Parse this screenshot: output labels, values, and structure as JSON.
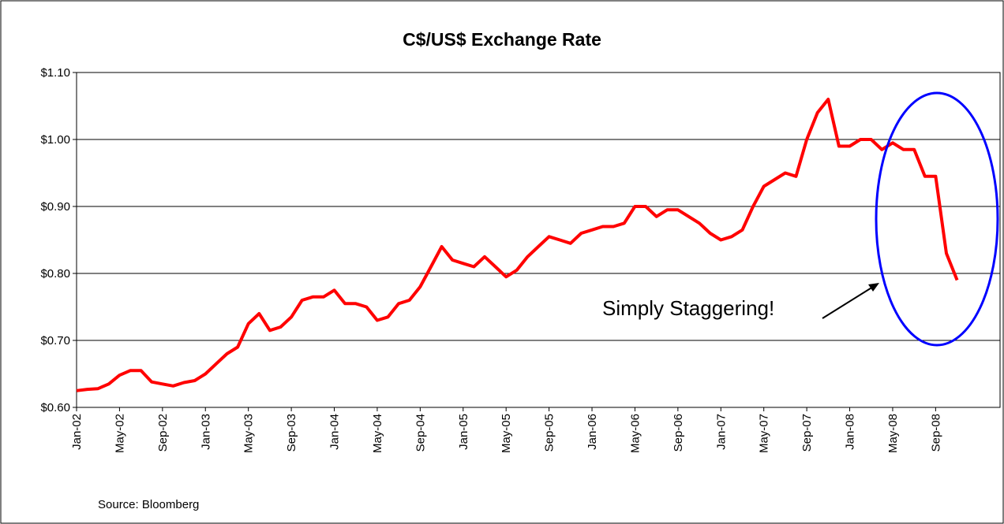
{
  "chart_data": {
    "type": "line",
    "title": "C$/US$ Exchange Rate",
    "annotation": "Simply Staggering!",
    "source": "Source: Bloomberg",
    "categories": [
      "Jan-02",
      null,
      null,
      null,
      "May-02",
      null,
      null,
      null,
      "Sep-02",
      null,
      null,
      null,
      "Jan-03",
      null,
      null,
      null,
      "May-03",
      null,
      null,
      null,
      "Sep-03",
      null,
      null,
      null,
      "Jan-04",
      null,
      null,
      null,
      "May-04",
      null,
      null,
      null,
      "Sep-04",
      null,
      null,
      null,
      "Jan-05",
      null,
      null,
      null,
      "May-05",
      null,
      null,
      null,
      "Sep-05",
      null,
      null,
      null,
      "Jan-06",
      null,
      null,
      null,
      "May-06",
      null,
      null,
      null,
      "Sep-06",
      null,
      null,
      null,
      "Jan-07",
      null,
      null,
      null,
      "May-07",
      null,
      null,
      null,
      "Sep-07",
      null,
      null,
      null,
      "Jan-08",
      null,
      null,
      null,
      "May-08",
      null,
      null,
      null,
      "Sep-08",
      null,
      null,
      null,
      null,
      null,
      null
    ],
    "series": [
      {
        "name": "C$/US$",
        "color": "#ff0000",
        "values": [
          0.625,
          0.627,
          0.628,
          0.635,
          0.648,
          0.655,
          0.655,
          0.638,
          0.635,
          0.632,
          0.637,
          0.64,
          0.65,
          0.665,
          0.68,
          0.69,
          0.725,
          0.74,
          0.715,
          0.72,
          0.735,
          0.76,
          0.765,
          0.765,
          0.775,
          0.755,
          0.755,
          0.75,
          0.73,
          0.735,
          0.755,
          0.76,
          0.78,
          0.81,
          0.84,
          0.82,
          0.815,
          0.81,
          0.825,
          0.81,
          0.795,
          0.805,
          0.825,
          0.84,
          0.855,
          0.85,
          0.845,
          0.86,
          0.865,
          0.87,
          0.87,
          0.875,
          0.9,
          0.9,
          0.885,
          0.895,
          0.895,
          0.885,
          0.875,
          0.86,
          0.85,
          0.855,
          0.865,
          0.9,
          0.93,
          0.94,
          0.95,
          0.945,
          1.0,
          1.04,
          1.06,
          0.99,
          0.99,
          1.0,
          1.0,
          0.985,
          0.995,
          0.985,
          0.985,
          0.945,
          0.945,
          0.83,
          0.79,
          null,
          null,
          null,
          null
        ]
      }
    ],
    "ylim": [
      0.6,
      1.1
    ],
    "yticks": [
      {
        "value": 0.6,
        "label": "$0.60"
      },
      {
        "value": 0.7,
        "label": "$0.70"
      },
      {
        "value": 0.8,
        "label": "$0.80"
      },
      {
        "value": 0.9,
        "label": "$0.90"
      },
      {
        "value": 1.0,
        "label": "$1.00"
      },
      {
        "value": 1.1,
        "label": "$1.10"
      }
    ],
    "grid": true
  }
}
